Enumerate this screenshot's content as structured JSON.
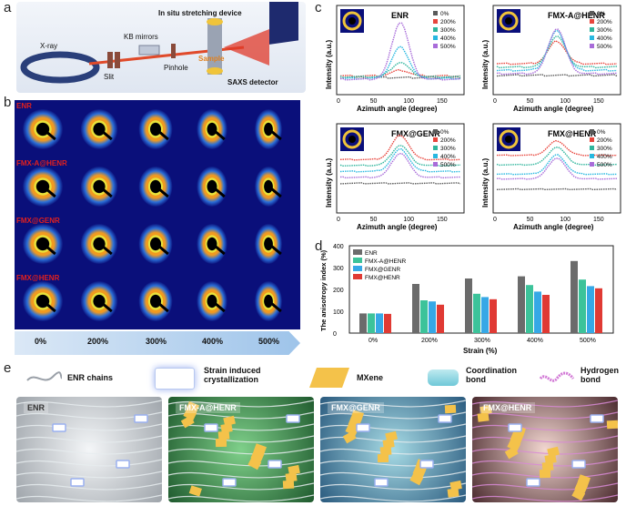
{
  "panels": {
    "a": "a",
    "b": "b",
    "c": "c",
    "d": "d",
    "e": "e"
  },
  "setup": {
    "xray": "X-ray",
    "slit": "Slit",
    "kb": "KB mirrors",
    "pinhole": "Pinhole",
    "device": "In situ stretching device",
    "sample": "Sample",
    "detector": "SAXS detector"
  },
  "saxs": {
    "rows": [
      "ENR",
      "FMX-A@HENR",
      "FMX@GENR",
      "FMX@HENR"
    ],
    "strains": [
      "0%",
      "200%",
      "300%",
      "400%",
      "500%"
    ]
  },
  "curves": {
    "xlabel": "Azimuth angle (degree)",
    "ylabel": "Intensity (a.u.)",
    "xticks": [
      "0",
      "50",
      "100",
      "150"
    ],
    "legend": [
      "0%",
      "200%",
      "300%",
      "400%",
      "500%"
    ],
    "colors": [
      "#5a5a5a",
      "#e8453c",
      "#2fb59c",
      "#27b8e0",
      "#a86cd9"
    ],
    "plots": [
      {
        "title": "ENR",
        "peaks": [
          0,
          10,
          25,
          55,
          100
        ],
        "base": [
          65,
          75,
          70,
          60,
          55
        ]
      },
      {
        "title": "FMX-A@HENR",
        "peaks": [
          0,
          40,
          55,
          70,
          80
        ],
        "base": [
          80,
          150,
          130,
          110,
          90
        ]
      },
      {
        "title": "FMX@GENR",
        "peaks": [
          0,
          60,
          50,
          55,
          60
        ],
        "base": [
          200,
          400,
          350,
          300,
          250
        ]
      },
      {
        "title": "FMX@HENR",
        "peaks": [
          0,
          45,
          55,
          60,
          65
        ],
        "base": [
          190,
          550,
          450,
          350,
          300
        ]
      }
    ]
  },
  "chart_data": {
    "type": "bar",
    "title": "",
    "xlabel": "Strain (%)",
    "ylabel": "The anisotropy index (%)",
    "categories": [
      "0%",
      "200%",
      "300%",
      "400%",
      "500%"
    ],
    "ylim": [
      0,
      400
    ],
    "yticks": [
      "0",
      "100",
      "200",
      "300",
      "400"
    ],
    "series": [
      {
        "name": "ENR",
        "color": "#6b6b6b",
        "values": [
          90,
          225,
          250,
          260,
          330
        ]
      },
      {
        "name": "FMX-A@HENR",
        "color": "#3cc39a",
        "values": [
          90,
          150,
          180,
          220,
          245
        ]
      },
      {
        "name": "FMX@GENR",
        "color": "#36a8e6",
        "values": [
          90,
          145,
          165,
          190,
          215
        ]
      },
      {
        "name": "FMX@HENR",
        "color": "#e03a34",
        "values": [
          88,
          130,
          155,
          175,
          205
        ]
      }
    ]
  },
  "legend_e": {
    "chains": "ENR chains",
    "crystal": "Strain induced crystallization",
    "mxene": "MXene",
    "coord": "Coordination bond",
    "hbond": "Hydrogen bond"
  },
  "schematics": [
    "ENR",
    "FMX-A@HENR",
    "FMX@GENR",
    "FMX@HENR"
  ]
}
